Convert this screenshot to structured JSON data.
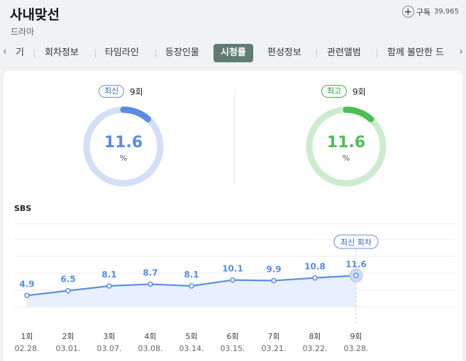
{
  "header": {
    "title": "사내맞선",
    "genre": "드라마",
    "subscribe_label": "구독",
    "subscriber_count": "39,965"
  },
  "tabs": {
    "partial_left": "기",
    "items": [
      "회차정보",
      "타임라인",
      "등장인물",
      "시청률",
      "편성정보",
      "관련앨범",
      "함께 볼만한 드"
    ],
    "active_index": 3
  },
  "ratings": {
    "latest": {
      "badge": "최신",
      "episode": "9회",
      "value": "11.6",
      "unit": "%",
      "fraction": 0.116,
      "color": "#5b8be4",
      "track_color": "#d3def8"
    },
    "highest": {
      "badge": "최고",
      "episode": "9회",
      "value": "11.6",
      "unit": "%",
      "fraction": 0.116,
      "color": "#4cbf54",
      "track_color": "#cdeccf"
    }
  },
  "network": "SBS",
  "chart_data": {
    "type": "line",
    "categories": [
      "1회",
      "2회",
      "3회",
      "4회",
      "5회",
      "6회",
      "7회",
      "8회",
      "9회"
    ],
    "dates": [
      "02.28.",
      "03.01.",
      "03.07.",
      "03.08.",
      "03.14.",
      "03.15.",
      "03.21.",
      "03.22.",
      "03.28."
    ],
    "values": [
      4.9,
      6.5,
      8.1,
      8.7,
      8.1,
      10.1,
      9.9,
      10.8,
      11.6
    ],
    "latest_label": "최신 회차",
    "color": "#5b8be4",
    "fill_color": "#e8f0fd",
    "grid": true
  }
}
